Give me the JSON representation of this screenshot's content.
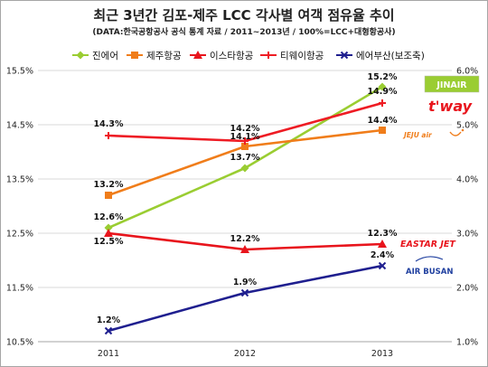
{
  "chart_data": {
    "type": "line",
    "title": "최근 3년간 김포-제주 LCC 각사별 여객 점유율 추이",
    "subtitle": "(DATA:한국공항공사 공식 통계 자료 / 2011~2013년 / 100%=LCC+대형항공사)",
    "categories": [
      "2011",
      "2012",
      "2013"
    ],
    "y_left": {
      "min": 10.5,
      "max": 15.5,
      "step": 1,
      "ticks": [
        "10.5%",
        "11.5%",
        "12.5%",
        "13.5%",
        "14.5%",
        "15.5%"
      ]
    },
    "y_right": {
      "min": 1.0,
      "max": 6.0,
      "step": 1,
      "ticks": [
        "1.0%",
        "2.0%",
        "3.0%",
        "4.0%",
        "5.0%",
        "6.0%"
      ]
    },
    "grid": true,
    "legend_position": "top",
    "series": [
      {
        "name": "진에어",
        "axis": "left",
        "values": [
          12.6,
          13.7,
          15.2
        ],
        "labels": [
          "12.6%",
          "13.7%",
          "15.2%"
        ],
        "color": "#9acd32",
        "marker": "diamond"
      },
      {
        "name": "제주항공",
        "axis": "left",
        "values": [
          13.2,
          14.1,
          14.4
        ],
        "labels": [
          "13.2%",
          "14.1%",
          "14.4%"
        ],
        "color": "#f07d1a",
        "marker": "square"
      },
      {
        "name": "이스타항공",
        "axis": "left",
        "values": [
          12.5,
          12.2,
          12.3
        ],
        "labels": [
          "12.5%",
          "12.2%",
          "12.3%"
        ],
        "color": "#e8141c",
        "marker": "triangle"
      },
      {
        "name": "티웨이항공",
        "axis": "left",
        "values": [
          14.3,
          14.2,
          14.9
        ],
        "labels": [
          "14.3%",
          "14.2%",
          "14.9%"
        ],
        "color": "#ee1c24",
        "marker": "cross"
      },
      {
        "name": "에어부산(보조축)",
        "axis": "right",
        "values": [
          1.2,
          1.9,
          2.4
        ],
        "labels": [
          "1.2%",
          "1.9%",
          "2.4%"
        ],
        "color": "#1f1f8f",
        "marker": "x"
      }
    ]
  },
  "logos": {
    "jinair": "JINAIR",
    "tway": "t'way",
    "jejuair": "JEJU air",
    "eastarjet": "EASTAR JET",
    "airbusan": "AIR BUSAN"
  }
}
